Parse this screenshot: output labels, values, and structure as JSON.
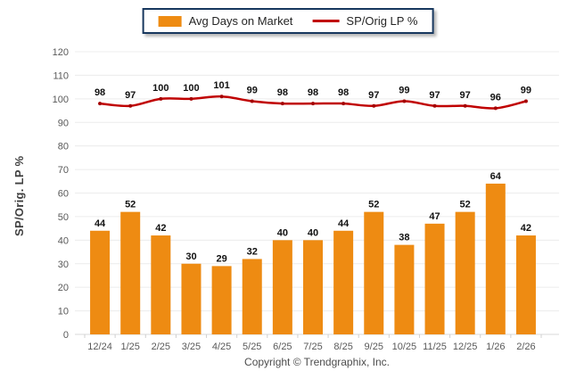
{
  "legend": {
    "bar_label": "Avg Days on Market",
    "line_label": "SP/Orig LP %"
  },
  "colors": {
    "bar": "#EE8B12",
    "line": "#C00000",
    "line_marker": "#A40000",
    "grid": "#ECECEC",
    "baseline": "#D8D8D8",
    "tick_mark": "#D0D0D0",
    "axis_text": "#595959",
    "value_label": "#111111",
    "legend_border": "#17375E"
  },
  "footer": {
    "copyright": "Copyright © Trendgraphix, Inc."
  },
  "chart_data": {
    "type": "bar",
    "subtype": "bar+line combo",
    "categories": [
      "12/24",
      "1/25",
      "2/25",
      "3/25",
      "4/25",
      "5/25",
      "6/25",
      "7/25",
      "8/25",
      "9/25",
      "10/25",
      "11/25",
      "12/25",
      "1/26",
      "2/26"
    ],
    "series": [
      {
        "name": "Avg Days on Market",
        "type": "bar",
        "color": "#EE8B12",
        "values": [
          44,
          52,
          42,
          30,
          29,
          32,
          40,
          40,
          44,
          52,
          38,
          47,
          52,
          64,
          42
        ]
      },
      {
        "name": "SP/Orig LP %",
        "type": "line",
        "color": "#C00000",
        "values": [
          98,
          97,
          100,
          100,
          101,
          99,
          98,
          98,
          98,
          97,
          99,
          97,
          97,
          96,
          99
        ]
      }
    ],
    "title": "",
    "xlabel": "",
    "ylabel": "SP/Orig. LP %",
    "ylim": [
      0,
      120
    ],
    "ytick_step": 10,
    "grid": true,
    "legend_position": "top-center"
  }
}
